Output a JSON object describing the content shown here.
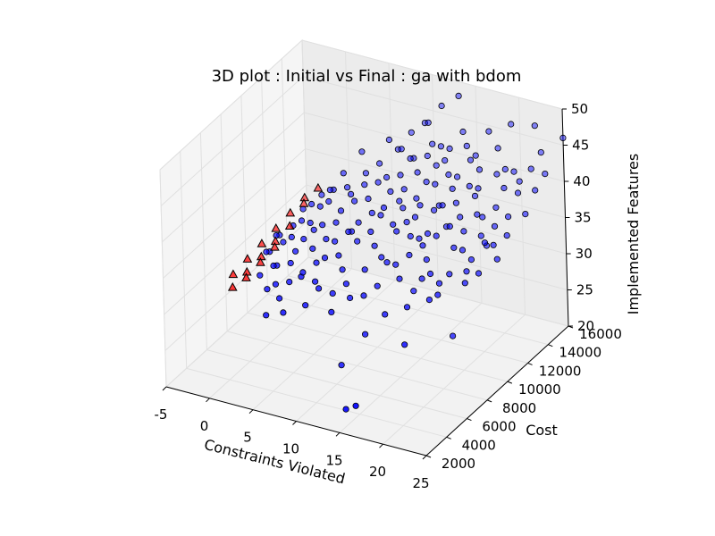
{
  "chart_data": {
    "type": "scatter",
    "projection": "3d",
    "title": "3D plot : Initial vs Final : ga with bdom",
    "xlabel": "Constraints Violated",
    "ylabel": "Cost",
    "zlabel": "Implemented Features",
    "xlim": [
      -5,
      25
    ],
    "ylim": [
      2000,
      16000
    ],
    "zlim": [
      20,
      50
    ],
    "xticks": [
      "-5",
      "0",
      "5",
      "10",
      "15",
      "20",
      "25"
    ],
    "yticks": [
      "2000",
      "4000",
      "6000",
      "8000",
      "10000",
      "12000",
      "14000",
      "16000"
    ],
    "zticks": [
      "20",
      "25",
      "30",
      "35",
      "40",
      "45",
      "50"
    ],
    "grid": true,
    "series": [
      {
        "marker": "circle",
        "color": "#0000ff",
        "points": [
          [
            14,
            3500,
            21
          ],
          [
            16,
            2800,
            23
          ],
          [
            10,
            6500,
            22
          ],
          [
            12,
            7200,
            26
          ],
          [
            18,
            6000,
            28
          ],
          [
            20,
            9000,
            26
          ],
          [
            15,
            9500,
            30
          ],
          [
            9,
            8000,
            31
          ],
          [
            11,
            9800,
            33
          ],
          [
            13,
            11000,
            35
          ],
          [
            16,
            12000,
            36
          ],
          [
            18,
            10500,
            32
          ],
          [
            20,
            12500,
            34
          ],
          [
            17,
            14000,
            38
          ],
          [
            19,
            13000,
            37
          ],
          [
            21,
            15000,
            40
          ],
          [
            14,
            12500,
            37
          ],
          [
            12,
            10500,
            36
          ],
          [
            10,
            11000,
            38
          ],
          [
            8,
            9500,
            36
          ],
          [
            6,
            8500,
            33
          ],
          [
            5,
            7000,
            32
          ],
          [
            7,
            10000,
            35
          ],
          [
            9,
            12500,
            38
          ],
          [
            11,
            13500,
            40
          ],
          [
            13,
            14500,
            41
          ],
          [
            15,
            15000,
            43
          ],
          [
            17,
            15500,
            45
          ],
          [
            19,
            16000,
            46
          ],
          [
            22,
            15800,
            47
          ],
          [
            23,
            14500,
            43
          ],
          [
            21,
            13500,
            41
          ],
          [
            18,
            13500,
            40
          ],
          [
            16,
            14500,
            42
          ],
          [
            14,
            15500,
            44
          ],
          [
            12,
            15000,
            42
          ],
          [
            10,
            14000,
            41
          ],
          [
            8,
            13000,
            39
          ],
          [
            6,
            11500,
            37
          ],
          [
            4,
            10000,
            35
          ],
          [
            3,
            9000,
            34
          ],
          [
            5,
            11000,
            36
          ],
          [
            7,
            12000,
            37
          ],
          [
            9,
            13500,
            39
          ],
          [
            11,
            14500,
            41
          ],
          [
            13,
            12000,
            38
          ],
          [
            15,
            11000,
            36
          ],
          [
            17,
            11500,
            37
          ],
          [
            19,
            11000,
            35
          ],
          [
            21,
            11500,
            36
          ],
          [
            23,
            12000,
            37
          ],
          [
            22,
            10000,
            34
          ],
          [
            20,
            10500,
            33
          ],
          [
            18,
            8500,
            31
          ],
          [
            16,
            8000,
            30
          ],
          [
            14,
            7500,
            29
          ],
          [
            12,
            8500,
            31
          ],
          [
            10,
            9000,
            32
          ],
          [
            8,
            7500,
            30
          ],
          [
            6,
            6500,
            29
          ],
          [
            4,
            6000,
            28
          ],
          [
            3,
            7500,
            30
          ],
          [
            2,
            8500,
            31
          ],
          [
            1,
            9500,
            33
          ],
          [
            2,
            10500,
            34
          ],
          [
            3,
            11500,
            36
          ],
          [
            4,
            12500,
            37
          ],
          [
            5,
            13500,
            38
          ],
          [
            6,
            14000,
            39
          ],
          [
            7,
            15000,
            40
          ],
          [
            8,
            15500,
            42
          ],
          [
            9,
            16000,
            43
          ],
          [
            10,
            15500,
            44
          ],
          [
            11,
            16000,
            46
          ],
          [
            13,
            16000,
            48
          ],
          [
            12,
            14500,
            40
          ],
          [
            14,
            13000,
            37
          ],
          [
            16,
            13000,
            38
          ],
          [
            18,
            12000,
            36
          ],
          [
            20,
            13500,
            38
          ],
          [
            22,
            14000,
            40
          ],
          [
            24,
            15000,
            42
          ],
          [
            25,
            16000,
            46
          ],
          [
            24,
            13000,
            39
          ],
          [
            23,
            11000,
            35
          ],
          [
            21,
            9500,
            33
          ],
          [
            19,
            8500,
            32
          ],
          [
            17,
            9500,
            33
          ],
          [
            15,
            10500,
            35
          ],
          [
            13,
            9500,
            33
          ],
          [
            11,
            8000,
            30
          ],
          [
            9,
            6500,
            29
          ],
          [
            7,
            7000,
            31
          ],
          [
            5,
            8500,
            32
          ],
          [
            3,
            10000,
            34
          ],
          [
            6,
            12500,
            38
          ],
          [
            8,
            11500,
            36
          ],
          [
            10,
            12500,
            37
          ],
          [
            12,
            13500,
            39
          ],
          [
            14,
            14000,
            40
          ],
          [
            16,
            15000,
            42
          ],
          [
            18,
            15500,
            43
          ],
          [
            20,
            14500,
            42
          ],
          [
            15,
            12500,
            38
          ],
          [
            13,
            11500,
            37
          ],
          [
            11,
            11000,
            36
          ],
          [
            9,
            10500,
            35
          ],
          [
            7,
            9000,
            33
          ],
          [
            5,
            9500,
            34
          ],
          [
            4,
            8000,
            31
          ],
          [
            3,
            6500,
            29
          ],
          [
            2,
            7000,
            30
          ],
          [
            1,
            8000,
            31
          ],
          [
            2,
            9000,
            32
          ],
          [
            6,
            9500,
            34
          ],
          [
            8,
            10000,
            34
          ],
          [
            10,
            10000,
            34
          ],
          [
            12,
            11500,
            36
          ],
          [
            14,
            11000,
            35
          ],
          [
            16,
            11000,
            36
          ],
          [
            17,
            12500,
            37
          ],
          [
            19,
            12500,
            38
          ],
          [
            21,
            12500,
            37
          ],
          [
            22,
            11500,
            36
          ],
          [
            20,
            11000,
            34
          ],
          [
            18,
            9500,
            32
          ],
          [
            16,
            9500,
            32
          ],
          [
            14,
            9000,
            32
          ],
          [
            12,
            9500,
            33
          ],
          [
            10,
            7500,
            30
          ],
          [
            8,
            8500,
            32
          ],
          [
            6,
            7500,
            31
          ],
          [
            4,
            9000,
            33
          ],
          [
            9,
            14500,
            40
          ],
          [
            11,
            15000,
            42
          ],
          [
            13,
            13500,
            39
          ],
          [
            15,
            13500,
            39
          ],
          [
            17,
            13500,
            40
          ],
          [
            7,
            13000,
            38
          ],
          [
            5,
            12000,
            37
          ],
          [
            3,
            13000,
            38
          ],
          [
            4,
            14000,
            40
          ],
          [
            6,
            15000,
            41
          ],
          [
            8,
            14500,
            41
          ],
          [
            10,
            13000,
            38
          ],
          [
            12,
            12500,
            38
          ],
          [
            14,
            10000,
            34
          ],
          [
            16,
            10000,
            34
          ],
          [
            18,
            11000,
            35
          ],
          [
            20,
            12000,
            36
          ],
          [
            22,
            13000,
            38
          ],
          [
            24,
            14000,
            41
          ],
          [
            23,
            15500,
            44
          ],
          [
            21,
            14500,
            42
          ],
          [
            19,
            14500,
            41
          ],
          [
            17,
            14500,
            41
          ],
          [
            15,
            14000,
            40
          ],
          [
            13,
            15000,
            42
          ],
          [
            11,
            12000,
            37
          ],
          [
            9,
            11500,
            36
          ],
          [
            7,
            11000,
            35
          ],
          [
            5,
            10500,
            35
          ],
          [
            3,
            12000,
            37
          ],
          [
            2,
            11500,
            35
          ],
          [
            1,
            10500,
            34
          ],
          [
            1,
            11500,
            35
          ],
          [
            2,
            12500,
            36
          ],
          [
            0,
            9500,
            32
          ],
          [
            0,
            10500,
            33
          ],
          [
            -1,
            9000,
            31
          ],
          [
            -1,
            10000,
            32
          ],
          [
            0,
            11500,
            34
          ],
          [
            1,
            12500,
            35
          ],
          [
            -2,
            10500,
            31
          ],
          [
            0,
            8500,
            30
          ],
          [
            -1,
            8000,
            29
          ],
          [
            1,
            7000,
            29
          ],
          [
            2,
            6000,
            27
          ],
          [
            -2,
            9500,
            30
          ]
        ]
      },
      {
        "marker": "triangle",
        "color": "#ff0000",
        "points": [
          [
            -1,
            12500,
            34
          ],
          [
            -1.5,
            11500,
            33
          ],
          [
            -2,
            10500,
            32
          ],
          [
            -2.5,
            9500,
            31
          ],
          [
            -3,
            8500,
            30
          ],
          [
            -3.5,
            7500,
            29
          ],
          [
            -1,
            11000,
            32
          ],
          [
            -1.5,
            10000,
            31
          ],
          [
            -2,
            9000,
            30
          ],
          [
            -2.5,
            8000,
            29
          ],
          [
            -3,
            7000,
            28
          ],
          [
            0,
            13000,
            35
          ],
          [
            -0.5,
            12000,
            34
          ],
          [
            -1,
            9500,
            31
          ],
          [
            -1.5,
            8500,
            30
          ],
          [
            -2,
            7500,
            29
          ]
        ]
      }
    ]
  }
}
